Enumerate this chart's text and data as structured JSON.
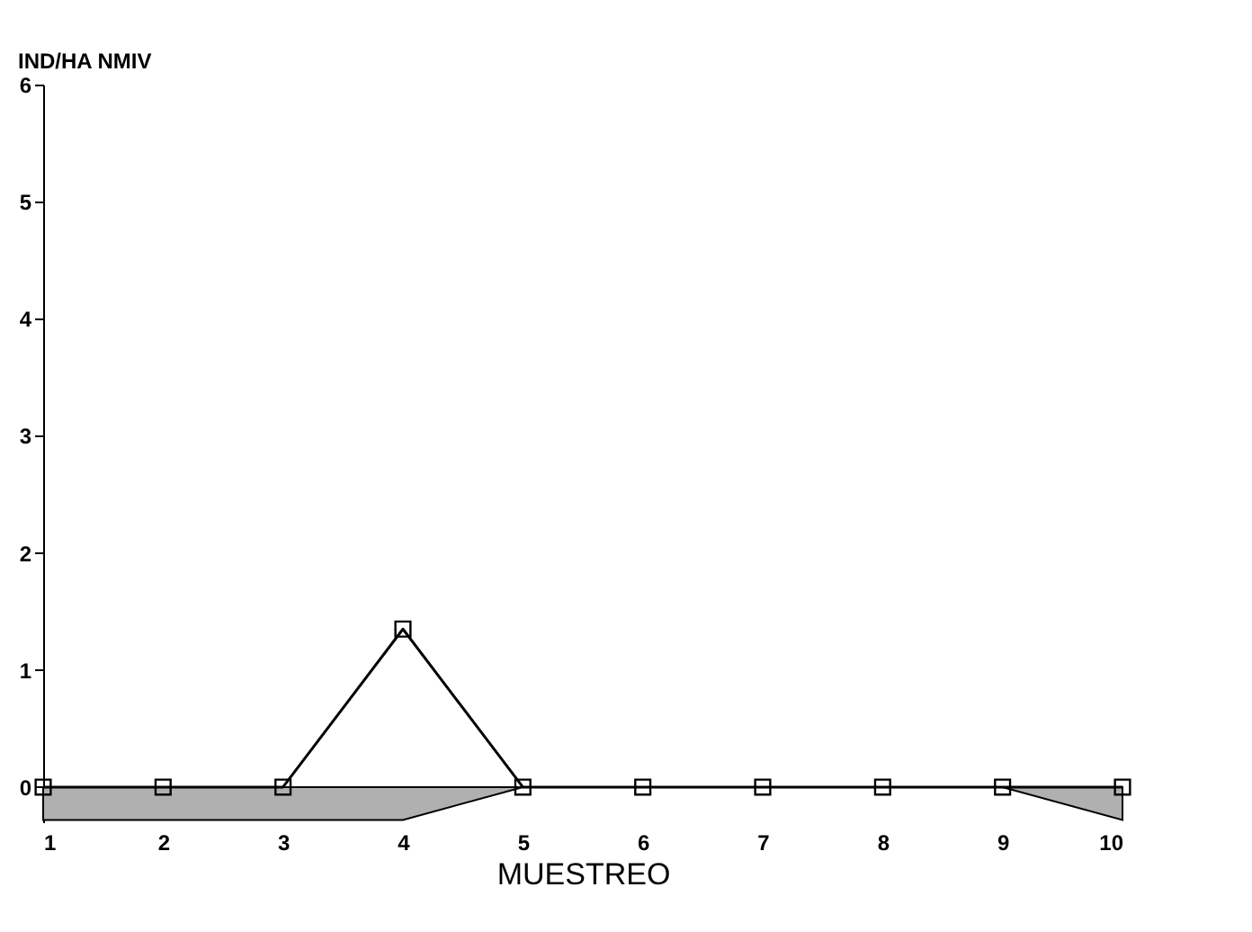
{
  "chart_data": {
    "type": "line",
    "ylabel": "IND/HA NMIV",
    "xlabel": "MUESTREO",
    "x": [
      1,
      2,
      3,
      4,
      5,
      6,
      7,
      8,
      9,
      10
    ],
    "series": [
      {
        "type": "area",
        "color": "#b0b0b0",
        "values": [
          -0.28,
          -0.28,
          -0.28,
          -0.28,
          0,
          0,
          0,
          0,
          0,
          -0.28
        ]
      },
      {
        "color": "#000000",
        "marker": "square",
        "values": [
          0,
          0,
          0,
          1.35,
          0,
          0,
          0,
          0,
          0,
          0
        ]
      }
    ],
    "xlim": [
      1,
      10
    ],
    "xticks": [
      1,
      2,
      3,
      4,
      5,
      6,
      7,
      8,
      9,
      10
    ],
    "ylim": [
      -0.3,
      6
    ],
    "yticks": [
      0,
      1,
      2,
      3,
      4,
      5,
      6
    ],
    "grid": false
  }
}
